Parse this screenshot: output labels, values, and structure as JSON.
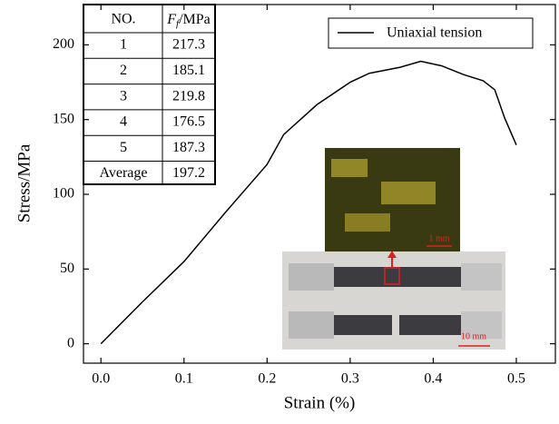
{
  "chart_data": {
    "type": "line",
    "x_label": "Strain (%)",
    "y_label": "Stress/MPa",
    "x": [
      0,
      0.05,
      0.1,
      0.15,
      0.2,
      0.22,
      0.26,
      0.3,
      0.323,
      0.36,
      0.385,
      0.41,
      0.437,
      0.46,
      0.474,
      0.486,
      0.5
    ],
    "series": [
      {
        "name": "Uniaxial tension",
        "color": "#000000",
        "values": [
          0,
          28,
          55,
          88,
          120,
          140,
          160,
          175,
          181,
          185,
          189,
          186,
          180,
          176,
          170,
          151,
          133
        ]
      }
    ],
    "xlim": [
      -0.021,
      0.547
    ],
    "ylim": [
      -13,
      227
    ],
    "xticks": [
      {
        "value": 0,
        "label": "0.0"
      },
      0.1,
      0.2,
      0.3,
      0.4,
      0.5
    ],
    "yticks": [
      0,
      50,
      100,
      150,
      200
    ],
    "legend": "upper right",
    "inset_labels": [
      "1 mm",
      "10 mm"
    ]
  },
  "table": {
    "header": [
      "NO.",
      {
        "symbol": "F",
        "subscript": "f",
        "unit": "/MPa"
      }
    ],
    "rows": [
      [
        "1",
        "217.3"
      ],
      [
        "2",
        "185.1"
      ],
      [
        "3",
        "219.8"
      ],
      [
        "4",
        "176.5"
      ],
      [
        "5",
        "187.3"
      ],
      [
        "Average",
        "197.2"
      ]
    ]
  }
}
